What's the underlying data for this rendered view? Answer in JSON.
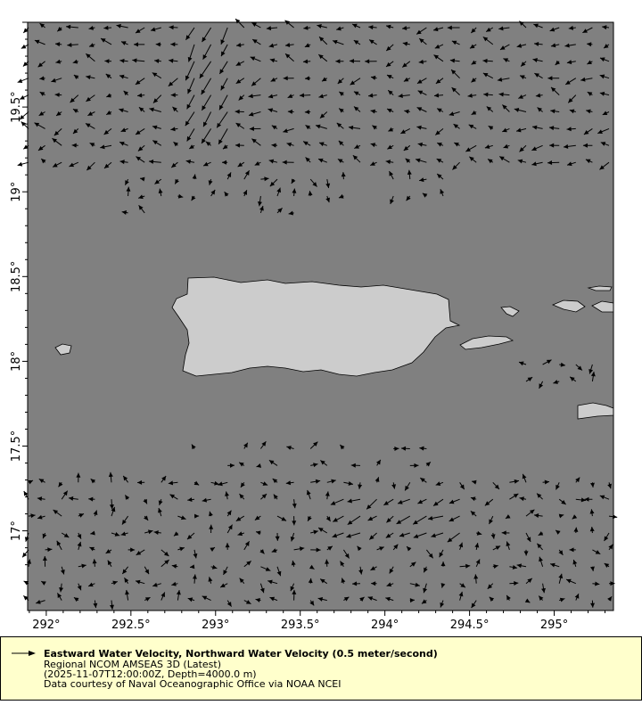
{
  "chart_data": {
    "type": "vector-map",
    "x_axis": {
      "ticks": [
        "292°",
        "292.5°",
        "293°",
        "293.5°",
        "294°",
        "294.5°",
        "295°"
      ],
      "tick_values": [
        292,
        292.5,
        293,
        293.5,
        294,
        294.5,
        295
      ],
      "range": [
        291.89,
        295.35
      ]
    },
    "y_axis": {
      "ticks": [
        "17°",
        "17.5°",
        "18°",
        "18.5°",
        "19°",
        "19.5°"
      ],
      "tick_values": [
        17,
        17.5,
        18,
        18.5,
        19,
        19.5
      ],
      "range": [
        16.53,
        20.0
      ]
    },
    "reference_vector": "0.5 meter/second",
    "colors": {
      "ocean": "#808080",
      "land": "#cccccc",
      "arrows": "#000000",
      "legend_bg": "#ffffcc"
    }
  },
  "legend": {
    "title": "Eastward Water Velocity, Northward Water Velocity (0.5 meter/second)",
    "dataset": "Regional NCOM AMSEAS 3D (Latest)",
    "params": "(2025-11-07T12:00:00Z, Depth=4000.0 m)",
    "credit": "Data courtesy of Naval Oceanographic Office via NOAA NCEI"
  }
}
